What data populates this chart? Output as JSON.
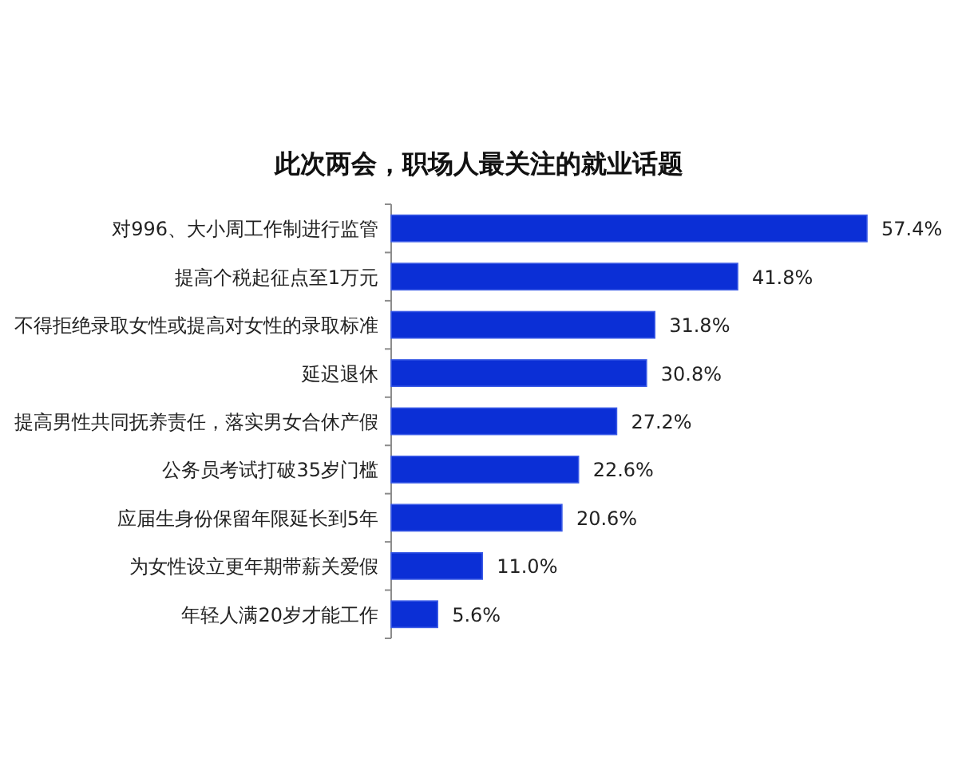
{
  "chart_data": {
    "type": "bar",
    "orientation": "horizontal",
    "title": "此次两会，职场人最关注的就业话题",
    "categories": [
      "对996、大小周工作制进行监管",
      "提高个税起征点至1万元",
      "不得拒绝录取女性或提高对女性的录取标准",
      "延迟退休",
      "提高男性共同抚养责任，落实男女合休产假",
      "公务员考试打破35岁门槛",
      "应届生身份保留年限延长到5年",
      "为女性设立更年期带薪关爱假",
      "年轻人满20岁才能工作"
    ],
    "values": [
      57.4,
      41.8,
      31.8,
      30.8,
      27.2,
      22.6,
      20.6,
      11.0,
      5.6
    ],
    "value_labels": [
      "57.4%",
      "41.8%",
      "31.8%",
      "30.8%",
      "27.2%",
      "22.6%",
      "20.6%",
      "11.0%",
      "5.6%"
    ],
    "color": "#0b2fd6"
  }
}
